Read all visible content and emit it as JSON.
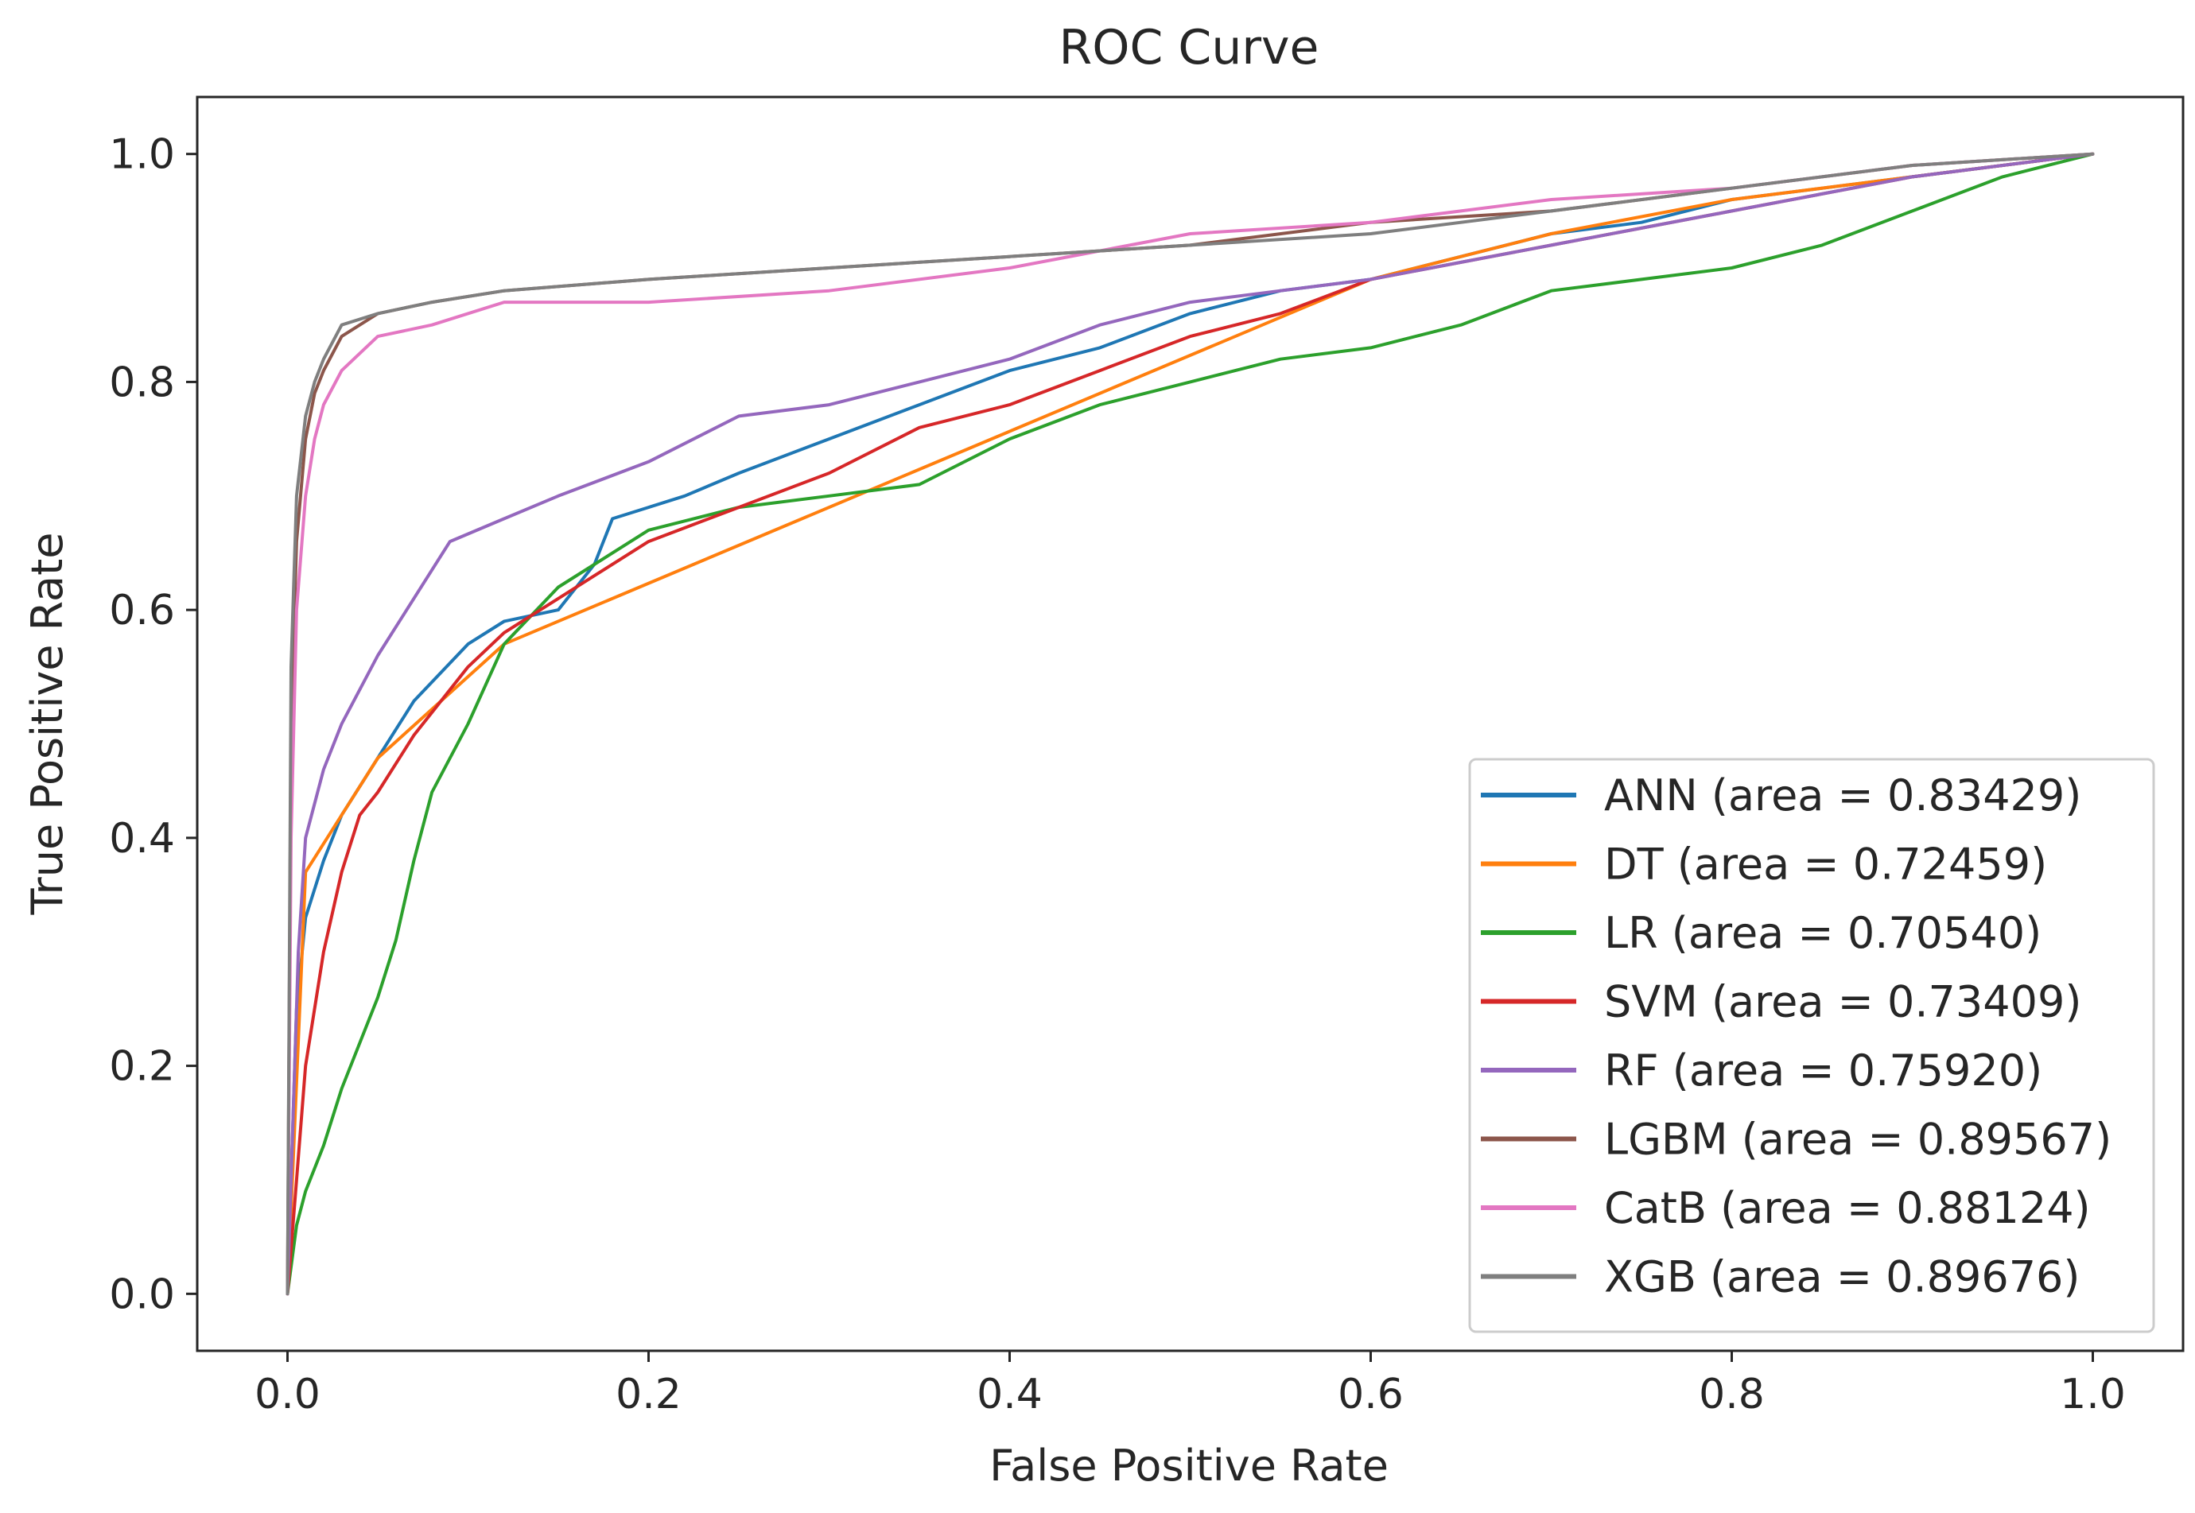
{
  "chart_data": {
    "type": "line",
    "title": "ROC Curve",
    "xlabel": "False Positive Rate",
    "ylabel": "True Positive Rate",
    "xlim": [
      -0.05,
      1.05
    ],
    "ylim": [
      -0.05,
      1.05
    ],
    "x_ticks": [
      "0.0",
      "0.2",
      "0.4",
      "0.6",
      "0.8",
      "1.0"
    ],
    "y_ticks": [
      "0.0",
      "0.2",
      "0.4",
      "0.6",
      "0.8",
      "1.0"
    ],
    "grid": false,
    "legend_position": "lower-right",
    "series": [
      {
        "name": "ANN (area = 0.83429)",
        "color": "#1f77b4",
        "x": [
          0.0,
          0.005,
          0.01,
          0.02,
          0.03,
          0.05,
          0.07,
          0.1,
          0.12,
          0.15,
          0.17,
          0.18,
          0.2,
          0.22,
          0.25,
          0.3,
          0.35,
          0.4,
          0.45,
          0.5,
          0.55,
          0.6,
          0.65,
          0.7,
          0.75,
          0.8,
          0.9,
          1.0
        ],
        "y": [
          0.0,
          0.25,
          0.33,
          0.38,
          0.42,
          0.47,
          0.52,
          0.57,
          0.59,
          0.6,
          0.64,
          0.68,
          0.69,
          0.7,
          0.72,
          0.75,
          0.78,
          0.81,
          0.83,
          0.86,
          0.88,
          0.89,
          0.91,
          0.93,
          0.94,
          0.96,
          0.98,
          1.0
        ]
      },
      {
        "name": "DT (area = 0.72459)",
        "color": "#ff7f0e",
        "x": [
          0.0,
          0.01,
          0.05,
          0.12,
          0.6,
          0.7,
          0.8,
          1.0
        ],
        "y": [
          0.0,
          0.37,
          0.47,
          0.57,
          0.89,
          0.93,
          0.96,
          1.0
        ]
      },
      {
        "name": "LR (area = 0.70540)",
        "color": "#2ca02c",
        "x": [
          0.0,
          0.005,
          0.01,
          0.02,
          0.03,
          0.05,
          0.06,
          0.07,
          0.08,
          0.1,
          0.12,
          0.15,
          0.2,
          0.25,
          0.3,
          0.35,
          0.4,
          0.45,
          0.5,
          0.55,
          0.6,
          0.65,
          0.7,
          0.75,
          0.8,
          0.85,
          0.9,
          0.95,
          1.0
        ],
        "y": [
          0.0,
          0.06,
          0.09,
          0.13,
          0.18,
          0.26,
          0.31,
          0.38,
          0.44,
          0.5,
          0.57,
          0.62,
          0.67,
          0.69,
          0.7,
          0.71,
          0.75,
          0.78,
          0.8,
          0.82,
          0.83,
          0.85,
          0.88,
          0.89,
          0.9,
          0.92,
          0.95,
          0.98,
          1.0
        ]
      },
      {
        "name": "SVM (area = 0.73409)",
        "color": "#d62728",
        "x": [
          0.0,
          0.005,
          0.01,
          0.02,
          0.03,
          0.04,
          0.05,
          0.07,
          0.1,
          0.12,
          0.15,
          0.17,
          0.2,
          0.25,
          0.3,
          0.35,
          0.4,
          0.45,
          0.5,
          0.55,
          0.6,
          0.7,
          0.8,
          0.9,
          1.0
        ],
        "y": [
          0.0,
          0.1,
          0.2,
          0.3,
          0.37,
          0.42,
          0.44,
          0.49,
          0.55,
          0.58,
          0.61,
          0.63,
          0.66,
          0.69,
          0.72,
          0.76,
          0.78,
          0.81,
          0.84,
          0.86,
          0.89,
          0.92,
          0.95,
          0.98,
          1.0
        ]
      },
      {
        "name": "RF (area = 0.75920)",
        "color": "#9467bd",
        "x": [
          0.0,
          0.003,
          0.006,
          0.01,
          0.02,
          0.03,
          0.05,
          0.07,
          0.09,
          0.12,
          0.15,
          0.2,
          0.25,
          0.3,
          0.35,
          0.4,
          0.45,
          0.5,
          0.55,
          0.6,
          0.7,
          0.8,
          0.9,
          1.0
        ],
        "y": [
          0.0,
          0.15,
          0.3,
          0.4,
          0.46,
          0.5,
          0.56,
          0.61,
          0.66,
          0.68,
          0.7,
          0.73,
          0.77,
          0.78,
          0.8,
          0.82,
          0.85,
          0.87,
          0.88,
          0.89,
          0.92,
          0.95,
          0.98,
          1.0
        ]
      },
      {
        "name": "LGBM (area = 0.89567)",
        "color": "#8c564b",
        "x": [
          0.0,
          0.002,
          0.005,
          0.01,
          0.015,
          0.02,
          0.03,
          0.05,
          0.08,
          0.12,
          0.2,
          0.3,
          0.4,
          0.5,
          0.6,
          0.7,
          0.8,
          0.9,
          1.0
        ],
        "y": [
          0.0,
          0.5,
          0.66,
          0.75,
          0.79,
          0.81,
          0.84,
          0.86,
          0.87,
          0.88,
          0.89,
          0.9,
          0.91,
          0.92,
          0.94,
          0.95,
          0.97,
          0.99,
          1.0
        ]
      },
      {
        "name": "CatB (area = 0.88124)",
        "color": "#e377c2",
        "x": [
          0.0,
          0.002,
          0.005,
          0.01,
          0.015,
          0.02,
          0.03,
          0.05,
          0.08,
          0.12,
          0.2,
          0.3,
          0.4,
          0.5,
          0.6,
          0.7,
          0.8,
          0.9,
          1.0
        ],
        "y": [
          0.0,
          0.4,
          0.6,
          0.7,
          0.75,
          0.78,
          0.81,
          0.84,
          0.85,
          0.87,
          0.87,
          0.88,
          0.9,
          0.93,
          0.94,
          0.96,
          0.97,
          0.99,
          1.0
        ]
      },
      {
        "name": "XGB (area = 0.89676)",
        "color": "#7f7f7f",
        "x": [
          0.0,
          0.002,
          0.005,
          0.01,
          0.015,
          0.02,
          0.03,
          0.05,
          0.08,
          0.12,
          0.2,
          0.3,
          0.4,
          0.5,
          0.6,
          0.7,
          0.8,
          0.9,
          1.0
        ],
        "y": [
          0.0,
          0.55,
          0.7,
          0.77,
          0.8,
          0.82,
          0.85,
          0.86,
          0.87,
          0.88,
          0.89,
          0.9,
          0.91,
          0.92,
          0.93,
          0.95,
          0.97,
          0.99,
          1.0
        ]
      }
    ]
  }
}
